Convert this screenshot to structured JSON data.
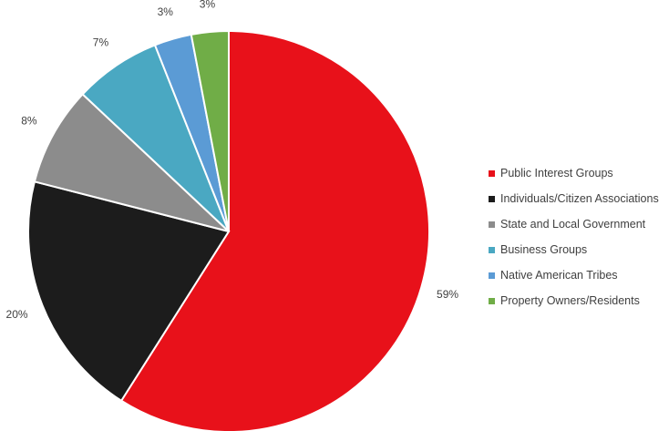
{
  "chart_data": {
    "type": "pie",
    "title": "",
    "start_angle_deg": 0,
    "direction": "clockwise",
    "legend_position": "right",
    "slices": [
      {
        "label": "Public Interest Groups",
        "value": 59,
        "display": "59%",
        "color": "#E8111A"
      },
      {
        "label": "Individuals/Citizen Associations",
        "value": 20,
        "display": "20%",
        "color": "#1C1C1C"
      },
      {
        "label": "State and Local Government",
        "value": 8,
        "display": "8%",
        "color": "#8C8C8C"
      },
      {
        "label": "Business Groups",
        "value": 7,
        "display": "7%",
        "color": "#4AA8C2"
      },
      {
        "label": "Native American Tribes",
        "value": 3,
        "display": "3%",
        "color": "#5B9BD5"
      },
      {
        "label": "Property Owners/Residents",
        "value": 3,
        "display": "3%",
        "color": "#70AD47"
      }
    ]
  }
}
